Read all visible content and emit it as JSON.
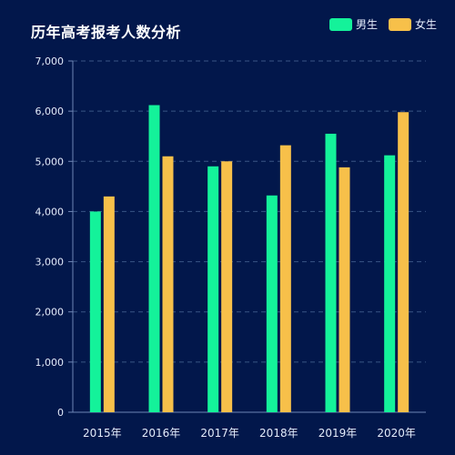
{
  "chart_data": {
    "type": "bar",
    "title": "历年高考报考人数分析",
    "categories": [
      "2015年",
      "2016年",
      "2017年",
      "2018年",
      "2019年",
      "2020年"
    ],
    "series": [
      {
        "name": "男生",
        "color": "#14f29a",
        "values": [
          4000,
          6120,
          4900,
          4320,
          5550,
          5120
        ]
      },
      {
        "name": "女生",
        "color": "#f7c04a",
        "values": [
          4300,
          5100,
          5000,
          5320,
          4880,
          5980
        ]
      }
    ],
    "ylim": [
      0,
      7000
    ],
    "yticks": [
      0,
      1000,
      2000,
      3000,
      4000,
      5000,
      6000,
      7000
    ],
    "ytick_labels": [
      "0",
      "1,000",
      "2,000",
      "3,000",
      "4,000",
      "5,000",
      "6,000",
      "7,000"
    ],
    "grid": true,
    "legend_position": "top-right",
    "background_color": "#02174b"
  }
}
